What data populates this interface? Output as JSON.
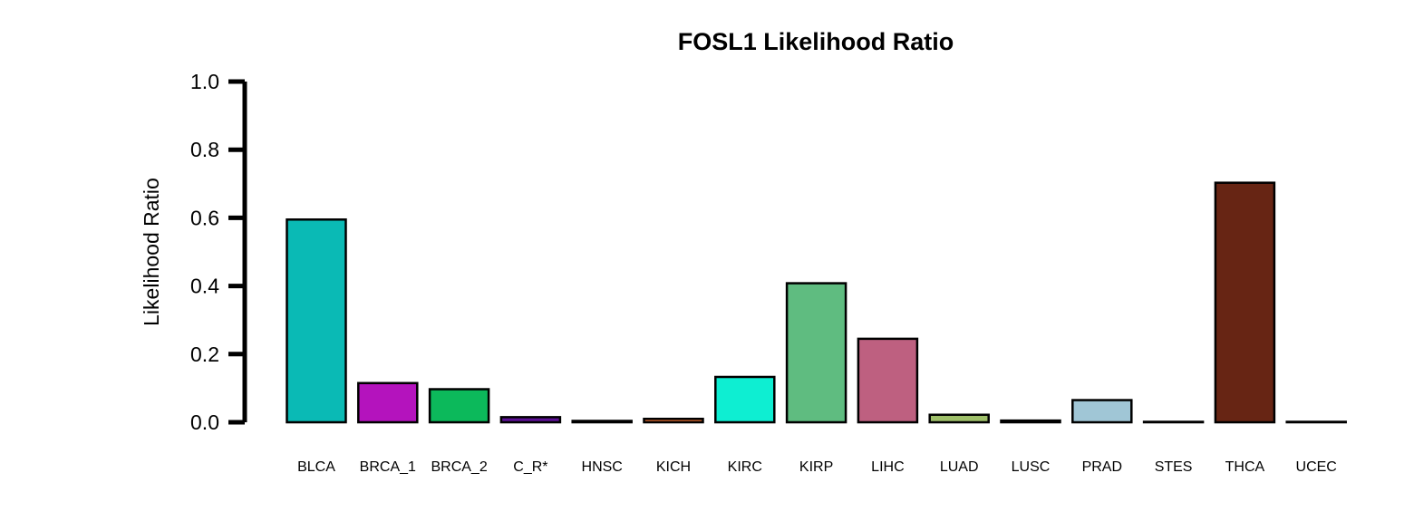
{
  "chart_data": {
    "type": "bar",
    "title": "FOSL1 Likelihood Ratio",
    "xlabel": "",
    "ylabel": "Likelihood Ratio",
    "ylim": [
      0,
      1.0
    ],
    "yticks": [
      "0.0",
      "0.2",
      "0.4",
      "0.6",
      "0.8",
      "1.0"
    ],
    "categories": [
      "BLCA",
      "BRCA_1",
      "BRCA_2",
      "C_R*",
      "HNSC",
      "KICH",
      "KIRC",
      "KIRP",
      "LIHC",
      "LUAD",
      "LUSC",
      "PRAD",
      "STES",
      "THCA",
      "UCEC"
    ],
    "values": [
      0.595,
      0.115,
      0.097,
      0.015,
      0.004,
      0.01,
      0.133,
      0.408,
      0.245,
      0.022,
      0.005,
      0.065,
      0.001,
      0.703,
      0.001
    ],
    "colors": [
      "#0ABAB5",
      "#B413BD",
      "#0CB95B",
      "#5D1196",
      "#101010",
      "#E06A2E",
      "#0EEED2",
      "#5FBC80",
      "#BE6080",
      "#9FC06A",
      "#202020",
      "#A0C6D6",
      "#888888",
      "#672514",
      "#999999"
    ],
    "grid": false,
    "legend": "none"
  }
}
